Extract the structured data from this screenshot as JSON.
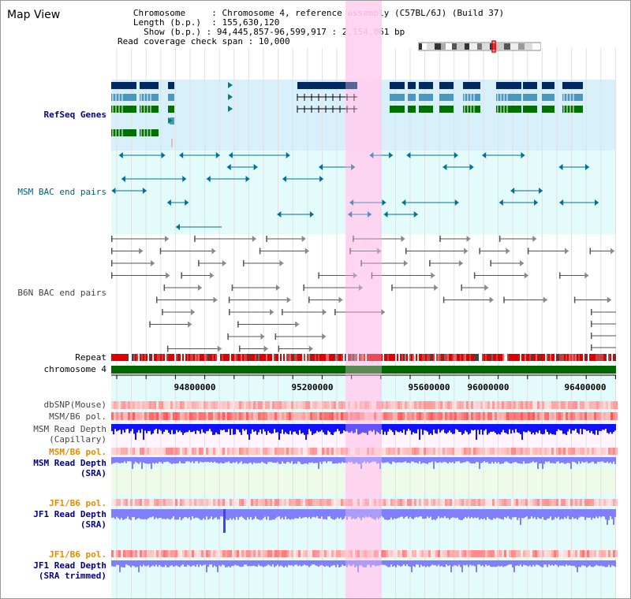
{
  "window": {
    "title": "Map View"
  },
  "info": {
    "chromosome_key": "Chromosome",
    "chromosome_value": "Chromosome 4, reference assembly (C57BL/6J) (Build 37)",
    "length_key": "Length (b.p.)",
    "length_value": "155,630,120",
    "show_key": "Show (b.p.)",
    "show_value": "94,445,857-96,599,917 : 2,154,061 bp",
    "coverage_key": "Read coverage check span",
    "coverage_value": "10,000"
  },
  "tracks": {
    "refseq": "RefSeq Genes",
    "msm_bac": "MSM BAC end pairs",
    "b6n_bac": "B6N BAC end pairs",
    "repeat": "Repeat",
    "chromosome": "chromosome 4",
    "dbsnp": "dbSNP(Mouse)",
    "msm_b6_pol_1": "MSM/B6 pol.",
    "msm_depth_cap": "MSM Read Depth\n(Capillary)",
    "msm_b6_pol_2": "MSM/B6 pol.",
    "msm_depth_sra": "MSM Read Depth\n(SRA)",
    "jf1_b6_pol_1": "JF1/B6 pol.",
    "jf1_depth_sra": "JF1 Read Depth\n(SRA)",
    "jf1_b6_pol_2": "JF1/B6 pol.",
    "jf1_depth_trim": "JF1 Read Depth\n(SRA trimmed)"
  },
  "axis": {
    "ticks": [
      "94800000",
      "95200000",
      "95600000",
      "96000000",
      "96400000"
    ]
  },
  "colors": {
    "highlight": "#ffd0f0",
    "refseq_bg": "#d8f0fb",
    "msm_bg": "#e4fbfb",
    "chromosome_bar": "#006600",
    "depth_blue": "#1010ff",
    "depth_light": "#8080ff"
  }
}
